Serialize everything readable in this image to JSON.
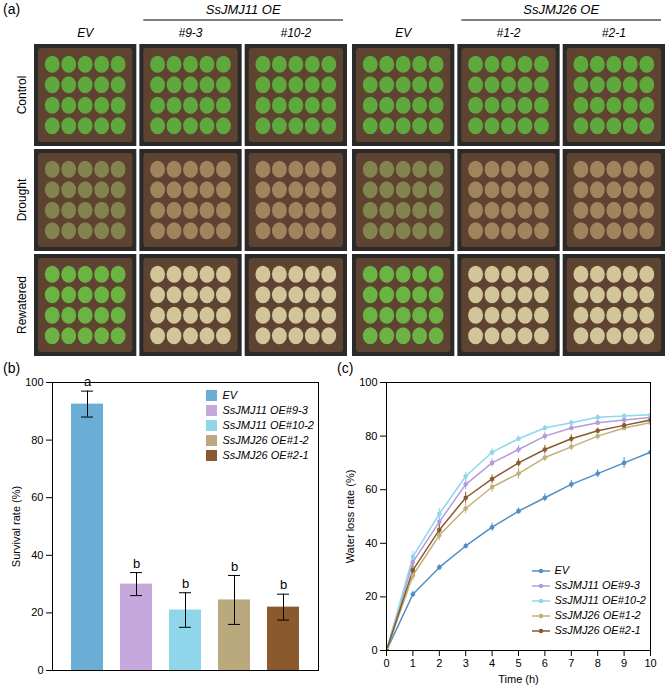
{
  "photo_panel": {
    "label": "(a)",
    "rows": [
      "Control",
      "Drought",
      "Rewatered"
    ],
    "groups": [
      {
        "title": "SsJMJ11 OE",
        "columns": [
          "EV",
          "#9-3",
          "#10-2"
        ]
      },
      {
        "title": "SsJMJ26 OE",
        "columns": [
          "EV",
          "#1-2",
          "#2-1"
        ]
      }
    ]
  },
  "chart_data": [
    {
      "type": "bar",
      "panel_label": "(b)",
      "categories": [
        "EV",
        "SsJMJ11 OE#9-3",
        "SsJMJ11 OE#10-2",
        "SsJMJ26 OE#1-2",
        "SsJMJ26 OE#2-1"
      ],
      "values": [
        92.5,
        30,
        21,
        24.5,
        22
      ],
      "errors": [
        4.5,
        4,
        6,
        8.5,
        4.5
      ],
      "letters": [
        "a",
        "b",
        "b",
        "b",
        "b"
      ],
      "colors": [
        "#6aaed6",
        "#c7a8dc",
        "#8fd6ea",
        "#b9a97c",
        "#8a5a2e"
      ],
      "ylabel": "Survival rate (%)",
      "ylim": [
        0,
        100
      ],
      "yticks": [
        0,
        20,
        40,
        60,
        80,
        100
      ],
      "legend": "top-right",
      "tick_labels": "y"
    },
    {
      "type": "line",
      "panel_label": "(c)",
      "xlabel": "Time (h)",
      "ylabel": "Water loss rate (%)",
      "x": [
        0,
        1,
        2,
        3,
        4,
        5,
        6,
        7,
        8,
        9,
        10
      ],
      "xlim": [
        0,
        10
      ],
      "xticks": [
        0,
        1,
        2,
        3,
        4,
        5,
        6,
        7,
        8,
        9,
        10
      ],
      "ylim": [
        0,
        100
      ],
      "yticks": [
        0,
        20,
        40,
        60,
        80,
        100
      ],
      "marker": "circle",
      "legend": "bottom-right",
      "series": [
        {
          "name": "EV",
          "color": "#4f8fc4",
          "values": [
            0,
            21,
            31,
            39,
            46,
            52,
            57,
            62,
            66,
            70,
            74
          ],
          "errors": [
            0,
            1.2,
            1,
            1,
            1.5,
            1.2,
            1.5,
            1.5,
            1.5,
            2,
            2
          ]
        },
        {
          "name": "SsJMJ11 OE#9-3",
          "color": "#b49cdc",
          "values": [
            0,
            33,
            48,
            62,
            70,
            75,
            80,
            83,
            85,
            86,
            87
          ],
          "errors": [
            0,
            2,
            2,
            2,
            1.5,
            1.5,
            1.5,
            1,
            1,
            1,
            1
          ]
        },
        {
          "name": "SsJMJ11 OE#10-2",
          "color": "#8fd6ee",
          "values": [
            0,
            35,
            51,
            65,
            74,
            79,
            83,
            85,
            87,
            87.5,
            88
          ],
          "errors": [
            0,
            2,
            2,
            1.5,
            1.5,
            1,
            1,
            1,
            1,
            1,
            1
          ]
        },
        {
          "name": "SsJMJ26 OE#1-2",
          "color": "#c2b07a",
          "values": [
            0,
            28,
            43,
            53,
            61,
            66,
            72,
            76,
            80,
            83,
            85
          ],
          "errors": [
            0,
            2,
            2,
            2,
            2,
            2,
            1.5,
            1.5,
            1.5,
            1,
            1
          ]
        },
        {
          "name": "SsJMJ26 OE#2-1",
          "color": "#8a5a2e",
          "values": [
            0,
            30,
            45,
            57,
            64,
            70,
            75,
            79,
            82,
            84,
            86
          ],
          "errors": [
            0,
            2,
            2,
            2,
            1.5,
            1.5,
            1.5,
            1.5,
            1,
            1,
            1
          ]
        }
      ]
    }
  ]
}
